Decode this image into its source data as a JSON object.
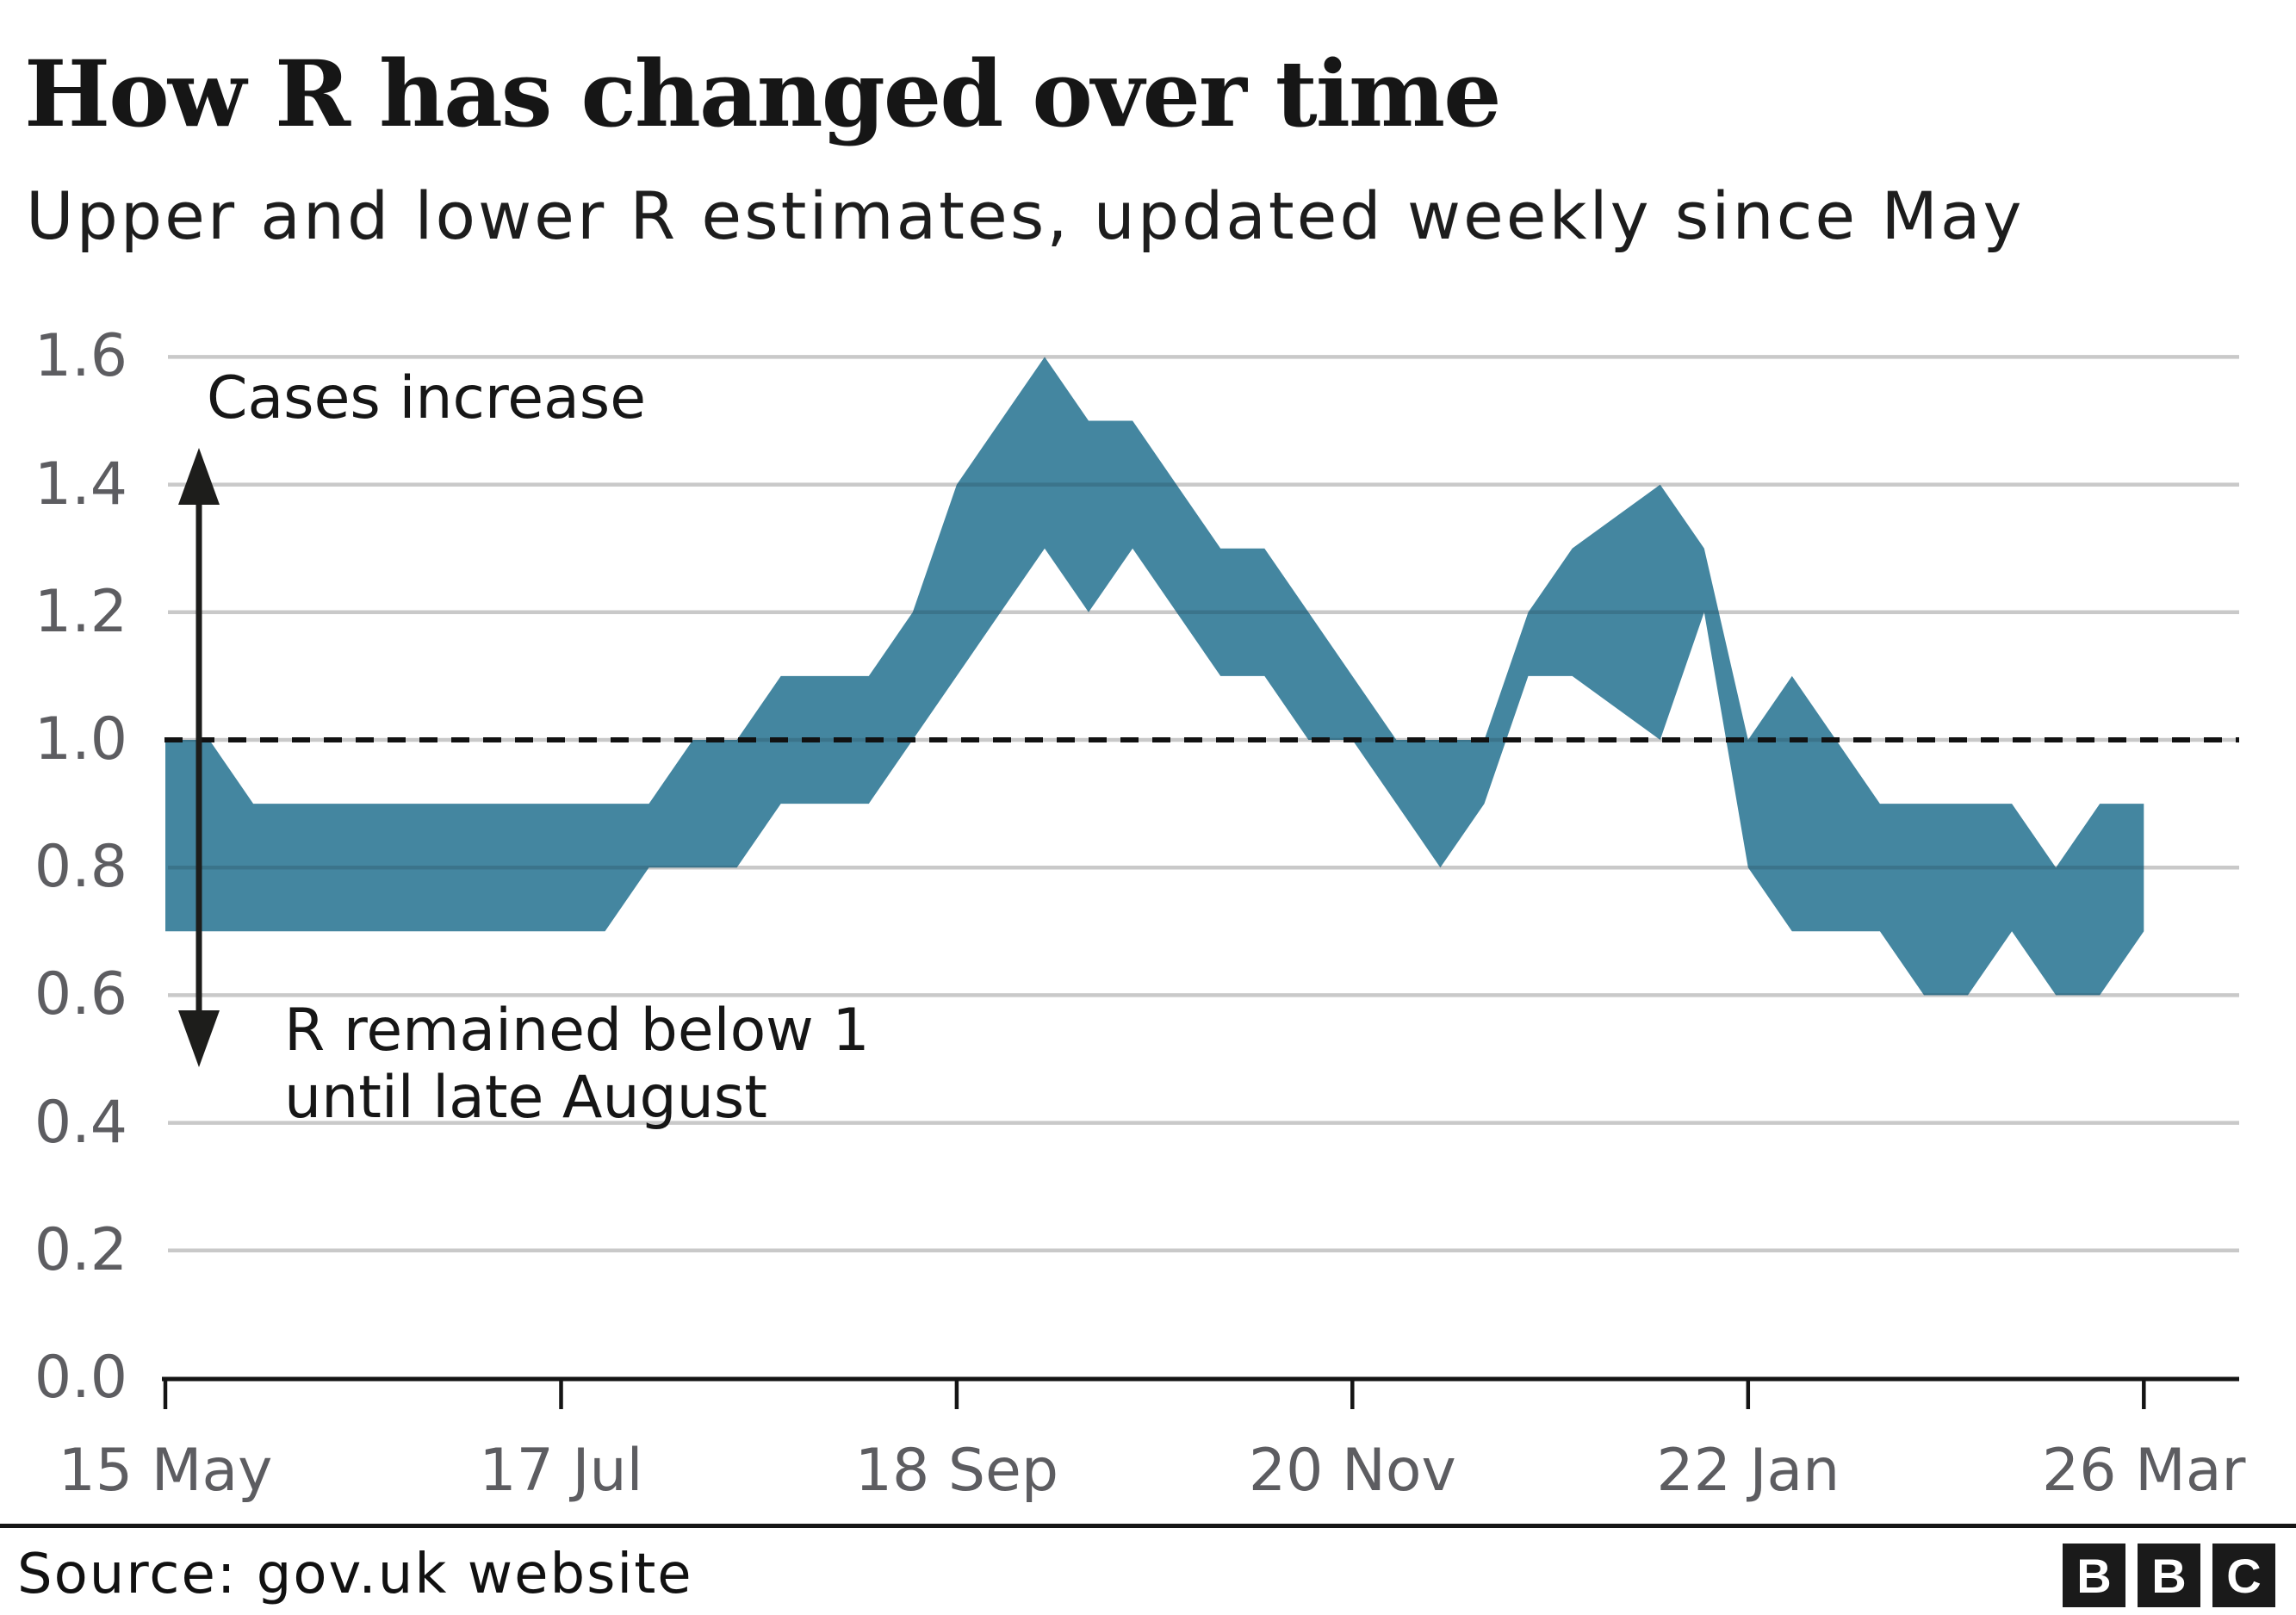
{
  "header": {
    "title": "How R has changed over time",
    "subtitle": "Upper and lower R estimates, updated weekly since May"
  },
  "chart_data": {
    "type": "area",
    "title": "How R has changed over time",
    "subtitle": "Upper and lower R estimates, updated weekly since May",
    "band_color": "#4486a0",
    "grid": "horizontal",
    "gridline_color": "#c9c9c9",
    "axis_label_color": "#5d5d61",
    "ylim": [
      0.0,
      1.6
    ],
    "y_tick_values": [
      0.0,
      0.2,
      0.4,
      0.6,
      0.8,
      1.0,
      1.2,
      1.4,
      1.6
    ],
    "y_tick_labels": [
      "0.0",
      "0.2",
      "0.4",
      "0.6",
      "0.8",
      "1.0",
      "1.2",
      "1.4",
      "1.6"
    ],
    "x_tick_weeks": [
      0,
      9,
      18,
      27,
      36,
      45
    ],
    "x_tick_labels": [
      "15 May",
      "17 Jul",
      "18 Sep",
      "20 Nov",
      "22 Jan",
      "26 Mar"
    ],
    "reference_line": {
      "value": 1.0,
      "style": "dashed",
      "color": "#111111"
    },
    "weeks": [
      "15 May",
      "22 May",
      "29 May",
      "5 Jun",
      "12 Jun",
      "19 Jun",
      "26 Jun",
      "3 Jul",
      "10 Jul",
      "17 Jul",
      "24 Jul",
      "31 Jul",
      "7 Aug",
      "14 Aug",
      "21 Aug",
      "28 Aug",
      "4 Sep",
      "11 Sep",
      "18 Sep",
      "25 Sep",
      "2 Oct",
      "9 Oct",
      "16 Oct",
      "23 Oct",
      "30 Oct",
      "6 Nov",
      "13 Nov",
      "20 Nov",
      "27 Nov",
      "4 Dec",
      "11 Dec",
      "18 Dec",
      "25 Dec",
      "1 Jan",
      "8 Jan",
      "15 Jan",
      "22 Jan",
      "29 Jan",
      "5 Feb",
      "12 Feb",
      "19 Feb",
      "26 Feb",
      "5 Mar",
      "12 Mar",
      "19 Mar",
      "26 Mar"
    ],
    "series": [
      {
        "name": "Lower R estimate",
        "values": [
          0.7,
          0.7,
          0.7,
          0.7,
          0.7,
          0.7,
          0.7,
          0.7,
          0.7,
          0.7,
          0.7,
          0.8,
          0.8,
          0.8,
          0.9,
          0.9,
          0.9,
          1.0,
          1.1,
          1.2,
          1.3,
          1.2,
          1.3,
          1.2,
          1.1,
          1.1,
          1.0,
          1.0,
          0.9,
          0.8,
          0.9,
          1.1,
          1.1,
          null,
          1.0,
          1.2,
          0.8,
          0.7,
          0.7,
          0.7,
          0.6,
          0.6,
          0.7,
          0.6,
          0.6,
          0.7
        ]
      },
      {
        "name": "Upper R estimate",
        "values": [
          1.0,
          1.0,
          0.9,
          0.9,
          0.9,
          0.9,
          0.9,
          0.9,
          0.9,
          0.9,
          0.9,
          0.9,
          1.0,
          1.0,
          1.1,
          1.1,
          1.1,
          1.2,
          1.4,
          1.5,
          1.6,
          1.5,
          1.5,
          1.4,
          1.3,
          1.3,
          1.2,
          1.1,
          1.0,
          1.0,
          1.0,
          1.2,
          1.3,
          null,
          1.4,
          1.3,
          1.0,
          1.1,
          1.0,
          0.9,
          0.9,
          0.9,
          0.9,
          0.8,
          0.9,
          0.9
        ]
      }
    ],
    "annotations": {
      "cases_increase": "Cases increase",
      "below_one_line1": "R remained below 1",
      "below_one_line2": "until late August"
    }
  },
  "footer": {
    "source": "Source: gov.uk website",
    "logo_letters": [
      "B",
      "B",
      "C"
    ]
  }
}
